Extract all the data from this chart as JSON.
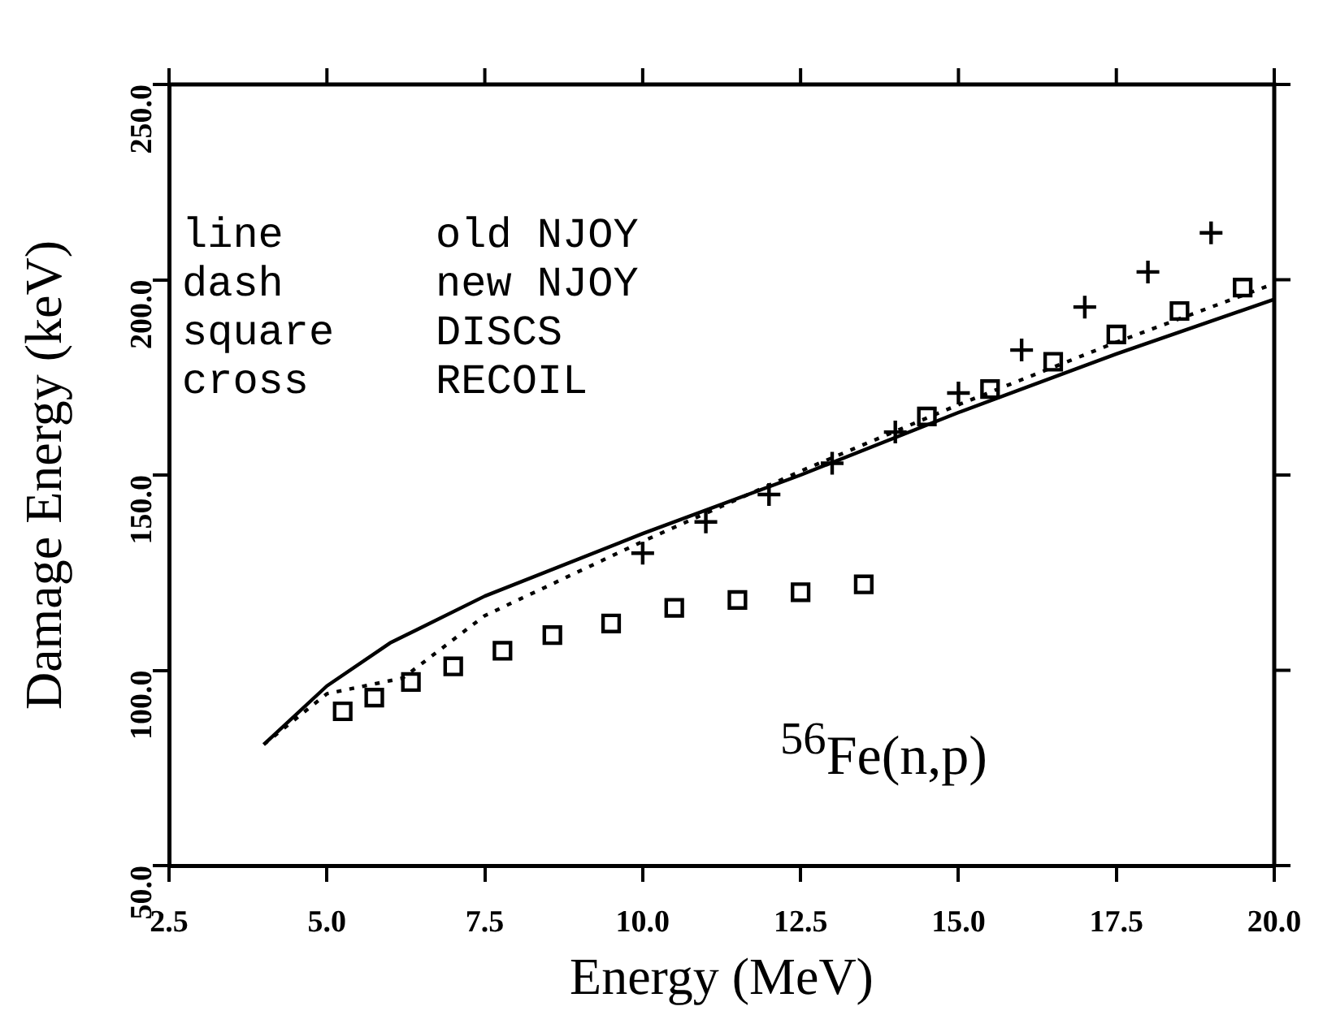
{
  "chart_data": {
    "type": "line",
    "xlabel": "Energy (MeV)",
    "ylabel": "Damage Energy (keV)",
    "xlim": [
      2.5,
      20
    ],
    "ylim": [
      50,
      250
    ],
    "xticks": [
      {
        "value": 2.5,
        "label": "2.5"
      },
      {
        "value": 5,
        "label": "5.0"
      },
      {
        "value": 7.5,
        "label": "7.5"
      },
      {
        "value": 10,
        "label": "10.0"
      },
      {
        "value": 12.5,
        "label": "12.5"
      },
      {
        "value": 15,
        "label": "15.0"
      },
      {
        "value": 17.5,
        "label": "17.5"
      },
      {
        "value": 20,
        "label": "20.0"
      }
    ],
    "yticks": [
      {
        "value": 50,
        "label": "50.0"
      },
      {
        "value": 100,
        "label": "100.0"
      },
      {
        "value": 150,
        "label": "150.0"
      },
      {
        "value": 200,
        "label": "200.0"
      },
      {
        "value": 250,
        "label": "250.0"
      }
    ],
    "grid": false,
    "legend": false,
    "series": [
      {
        "color": "#000000",
        "line_style": "solid",
        "marker": "none",
        "x": [
          4,
          5,
          6,
          7.5,
          10,
          12.5,
          15,
          17.5,
          20
        ],
        "values": [
          81,
          96,
          107,
          119,
          135,
          150,
          166,
          181,
          195
        ]
      },
      {
        "color": "#000000",
        "line_style": "dotted",
        "marker": "none",
        "x": [
          4,
          5,
          6.2,
          7.5,
          10,
          12.5,
          15,
          17.5,
          20
        ],
        "values": [
          81,
          94,
          98,
          114,
          133,
          151,
          168,
          184,
          199
        ]
      },
      {
        "type": "scatter",
        "color": "#000000",
        "marker": "square",
        "x": [
          5.25,
          5.75,
          6.33,
          7,
          7.78,
          8.57,
          9.5,
          10.5,
          11.5,
          12.5,
          13.5,
          14.5,
          15.5,
          16.5,
          17.5,
          18.5,
          19.5
        ],
        "values": [
          89.5,
          93,
          97,
          101,
          105,
          109,
          112,
          116,
          118,
          120,
          122,
          165,
          172,
          179,
          186,
          192,
          198
        ]
      },
      {
        "type": "scatter",
        "color": "#000000",
        "marker": "cross",
        "x": [
          10,
          11,
          12,
          13,
          14,
          15,
          16,
          17,
          18,
          19
        ],
        "values": [
          130,
          138,
          145,
          153,
          161,
          171,
          182,
          193,
          202,
          212
        ]
      }
    ],
    "annotations": [
      "line      old NJOY",
      "dash      new NJOY",
      "square    DISCS",
      "cross     RECOIL",
      "$^{56}$Fe(n,p)"
    ]
  }
}
